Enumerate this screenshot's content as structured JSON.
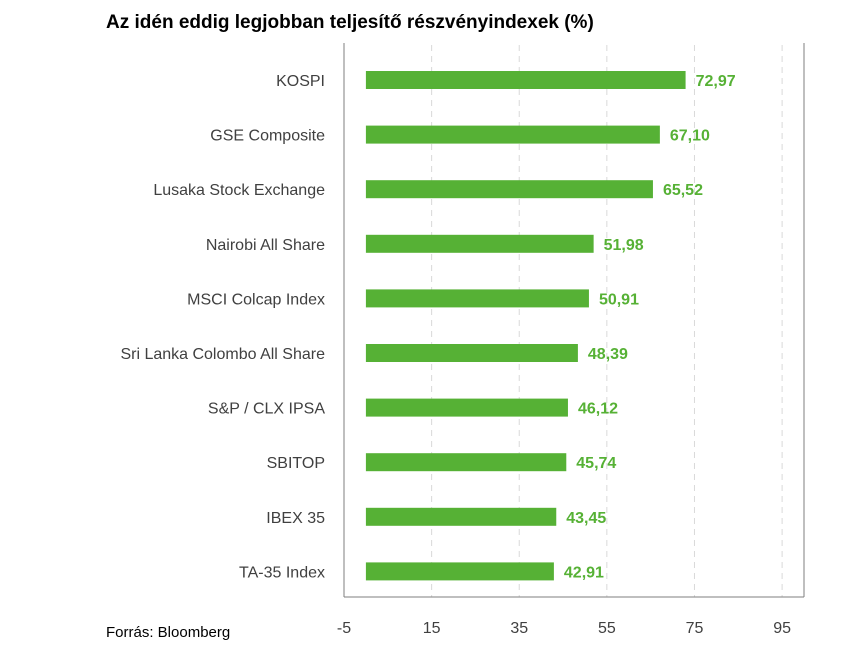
{
  "title": "Az idén eddig legjobban teljesítő részvényindexek (%)",
  "source": "Forrás: Bloomberg",
  "colors": {
    "bar": "#56b135",
    "value_label": "#56b135",
    "grid": "#d9d9d9",
    "axis": "#7f7f7f"
  },
  "chart_data": {
    "type": "bar",
    "orientation": "horizontal",
    "title": "Az idén eddig legjobban teljesítő részvényindexek (%)",
    "categories": [
      "KOSPI",
      "GSE Composite",
      "Lusaka Stock Exchange",
      "Nairobi All Share",
      "MSCI Colcap Index",
      "Sri Lanka Colombo All Share",
      "S&P / CLX IPSA",
      "SBITOP",
      "IBEX 35",
      "TA-35 Index"
    ],
    "values": [
      72.97,
      67.1,
      65.52,
      51.98,
      50.91,
      48.39,
      46.12,
      45.74,
      43.45,
      42.91
    ],
    "value_labels": [
      "72,97",
      "67,10",
      "65,52",
      "51,98",
      "50,91",
      "48,39",
      "46,12",
      "45,74",
      "43,45",
      "42,91"
    ],
    "xlim": [
      -5,
      100
    ],
    "xticks": [
      -5,
      15,
      35,
      55,
      75,
      95
    ],
    "xtick_labels": [
      "-5",
      "15",
      "35",
      "55",
      "75",
      "95"
    ],
    "grid": "vertical-dashed",
    "xlabel": "",
    "ylabel": ""
  }
}
